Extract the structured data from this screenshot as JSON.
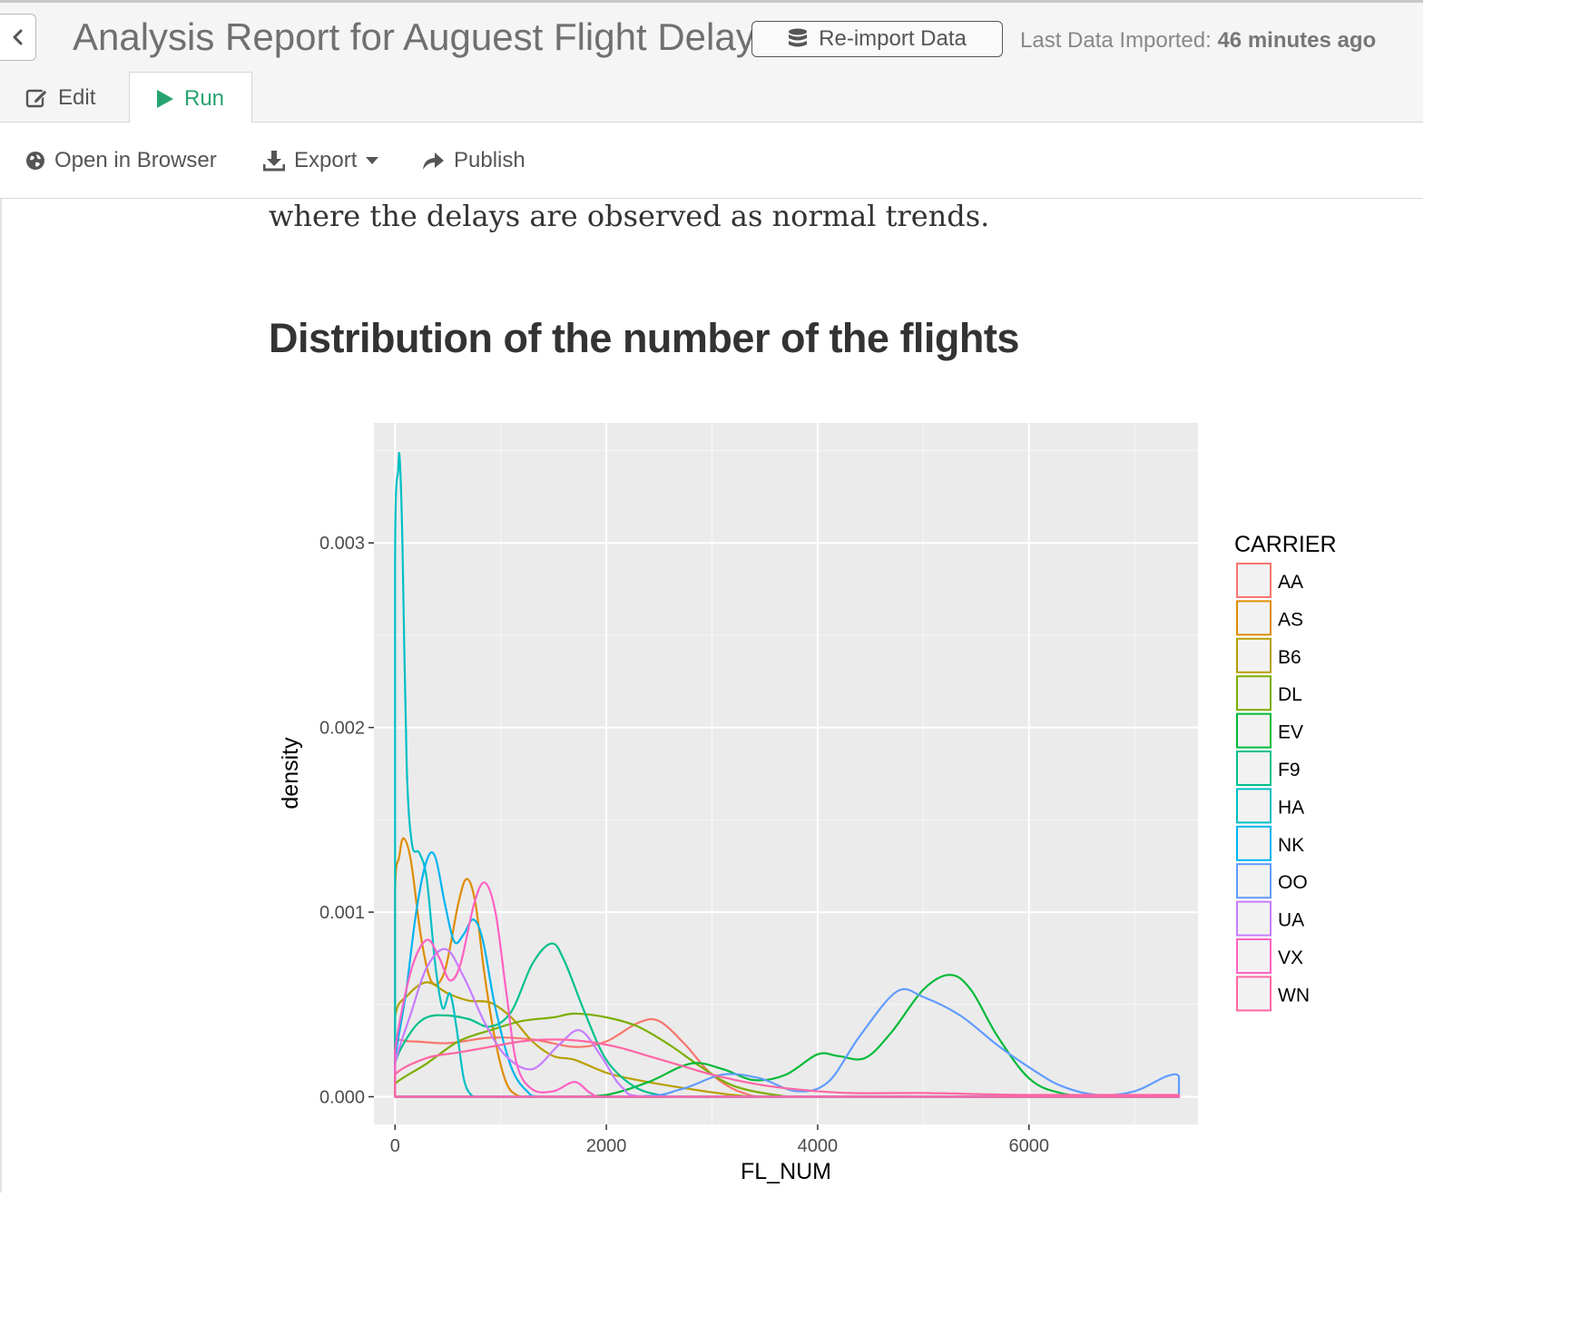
{
  "header": {
    "title": "Analysis Report for Auguest Flight Delay",
    "reimport_label": "Re-import Data",
    "last_import_label": "Last Data Imported:",
    "last_import_value": "46 minutes ago"
  },
  "tabs": [
    {
      "label": "Edit",
      "icon": "pencil-square-icon"
    },
    {
      "label": "Run",
      "icon": "play-icon",
      "active": true
    }
  ],
  "toolbar": {
    "open_label": "Open in Browser",
    "export_label": "Export",
    "publish_label": "Publish"
  },
  "document": {
    "paragraph_tail": "where the delays are observed as normal trends.",
    "heading": "Distribution of the number of the flights"
  },
  "colors": {
    "accent_green": "#27a371",
    "panel_bg": "#ebebeb"
  },
  "chart_data": {
    "type": "line",
    "title": "",
    "xlabel": "FL_NUM",
    "ylabel": "density",
    "xlim": [
      -200,
      7600
    ],
    "ylim": [
      -0.00015,
      0.00365
    ],
    "x_ticks": [
      0,
      2000,
      4000,
      6000
    ],
    "x_tick_labels": [
      "0",
      "2000",
      "4000",
      "6000"
    ],
    "y_ticks": [
      0.0,
      0.001,
      0.002,
      0.003
    ],
    "y_tick_labels": [
      "0.000",
      "0.001",
      "0.002",
      "0.003"
    ],
    "grid": true,
    "legend_title": "CARRIER",
    "legend_position": "right",
    "series": [
      {
        "name": "AA",
        "color": "#F8766D",
        "points": [
          [
            0,
            0
          ],
          [
            0,
            0.00028
          ],
          [
            150,
            0.0003
          ],
          [
            500,
            0.00029
          ],
          [
            900,
            0.00032
          ],
          [
            1300,
            0.00031
          ],
          [
            1700,
            0.00027
          ],
          [
            2000,
            0.0003
          ],
          [
            2300,
            0.0004
          ],
          [
            2500,
            0.00041
          ],
          [
            2750,
            0.00028
          ],
          [
            3000,
            0.00012
          ],
          [
            3300,
            2e-05
          ],
          [
            3700,
            0.0
          ],
          [
            7420,
            0.0
          ]
        ]
      },
      {
        "name": "AS",
        "color": "#DE8C00",
        "points": [
          [
            0,
            0
          ],
          [
            0,
            0.0011
          ],
          [
            40,
            0.0013
          ],
          [
            80,
            0.0014
          ],
          [
            150,
            0.00128
          ],
          [
            250,
            0.00085
          ],
          [
            350,
            0.00062
          ],
          [
            470,
            0.00068
          ],
          [
            600,
            0.00105
          ],
          [
            680,
            0.00118
          ],
          [
            760,
            0.00105
          ],
          [
            850,
            0.00065
          ],
          [
            950,
            0.0003
          ],
          [
            1050,
            8e-05
          ],
          [
            1150,
            1e-05
          ],
          [
            1300,
            0.0
          ],
          [
            7420,
            0.0
          ]
        ]
      },
      {
        "name": "B6",
        "color": "#B79F00",
        "points": [
          [
            0,
            0
          ],
          [
            0,
            0.00043
          ],
          [
            120,
            0.00055
          ],
          [
            300,
            0.00062
          ],
          [
            500,
            0.00056
          ],
          [
            700,
            0.00052
          ],
          [
            900,
            0.00051
          ],
          [
            1100,
            0.00043
          ],
          [
            1300,
            0.0003
          ],
          [
            1500,
            0.00022
          ],
          [
            1700,
            0.0002
          ],
          [
            2000,
            0.00013
          ],
          [
            2300,
            9e-05
          ],
          [
            2700,
            5e-05
          ],
          [
            3200,
            1e-05
          ],
          [
            3600,
            0.0
          ],
          [
            7420,
            0.0
          ]
        ]
      },
      {
        "name": "DL",
        "color": "#7CAE00",
        "points": [
          [
            0,
            0
          ],
          [
            0,
            7e-05
          ],
          [
            300,
            0.00018
          ],
          [
            600,
            0.0003
          ],
          [
            900,
            0.00036
          ],
          [
            1200,
            0.00041
          ],
          [
            1500,
            0.00043
          ],
          [
            1700,
            0.00045
          ],
          [
            2000,
            0.00043
          ],
          [
            2300,
            0.00038
          ],
          [
            2600,
            0.00028
          ],
          [
            2900,
            0.00016
          ],
          [
            3200,
            6e-05
          ],
          [
            3600,
            1e-05
          ],
          [
            4000,
            0.0
          ],
          [
            7420,
            0.0
          ]
        ]
      },
      {
        "name": "EV",
        "color": "#00BA38",
        "points": [
          [
            0,
            0
          ],
          [
            1000,
            0.0
          ],
          [
            1600,
            0.0
          ],
          [
            2000,
            1e-05
          ],
          [
            2400,
            8e-05
          ],
          [
            2800,
            0.00018
          ],
          [
            3100,
            0.00015
          ],
          [
            3400,
            9e-05
          ],
          [
            3700,
            0.00012
          ],
          [
            4000,
            0.00023
          ],
          [
            4200,
            0.00022
          ],
          [
            4450,
            0.00021
          ],
          [
            4700,
            0.00035
          ],
          [
            5000,
            0.00058
          ],
          [
            5250,
            0.00066
          ],
          [
            5450,
            0.00058
          ],
          [
            5700,
            0.00033
          ],
          [
            6000,
            0.0001
          ],
          [
            6300,
            2e-05
          ],
          [
            6700,
            0.0
          ],
          [
            7420,
            0.0
          ]
        ]
      },
      {
        "name": "F9",
        "color": "#00C08B",
        "points": [
          [
            0,
            0
          ],
          [
            0,
            0.00018
          ],
          [
            150,
            0.00035
          ],
          [
            300,
            0.00043
          ],
          [
            500,
            0.00044
          ],
          [
            700,
            0.00042
          ],
          [
            900,
            0.00038
          ],
          [
            1100,
            0.00046
          ],
          [
            1300,
            0.00072
          ],
          [
            1480,
            0.00083
          ],
          [
            1600,
            0.00074
          ],
          [
            1800,
            0.00045
          ],
          [
            2000,
            0.0002
          ],
          [
            2250,
            6e-05
          ],
          [
            2500,
            1e-05
          ],
          [
            2800,
            0.0
          ],
          [
            7420,
            0.0
          ]
        ]
      },
      {
        "name": "HA",
        "color": "#00BFC4",
        "points": [
          [
            0,
            0
          ],
          [
            0,
            0.0029
          ],
          [
            30,
            0.0034
          ],
          [
            45,
            0.00345
          ],
          [
            70,
            0.003
          ],
          [
            110,
            0.0018
          ],
          [
            160,
            0.00137
          ],
          [
            230,
            0.00132
          ],
          [
            300,
            0.00118
          ],
          [
            380,
            0.00072
          ],
          [
            450,
            0.00048
          ],
          [
            520,
            0.00056
          ],
          [
            580,
            0.00038
          ],
          [
            650,
            0.0001
          ],
          [
            720,
            1e-05
          ],
          [
            800,
            0.0
          ],
          [
            7420,
            0.0
          ]
        ]
      },
      {
        "name": "NK",
        "color": "#00B4EF",
        "points": [
          [
            0,
            0
          ],
          [
            0,
            0.0002
          ],
          [
            100,
            0.00055
          ],
          [
            200,
            0.001
          ],
          [
            300,
            0.00128
          ],
          [
            380,
            0.0013
          ],
          [
            470,
            0.00105
          ],
          [
            560,
            0.00084
          ],
          [
            650,
            0.00088
          ],
          [
            740,
            0.00096
          ],
          [
            830,
            0.00085
          ],
          [
            950,
            0.00048
          ],
          [
            1100,
            0.00016
          ],
          [
            1250,
            3e-05
          ],
          [
            1400,
            0.0
          ],
          [
            7420,
            0.0
          ]
        ]
      },
      {
        "name": "OO",
        "color": "#619CFF",
        "points": [
          [
            0,
            0
          ],
          [
            2200,
            0.0
          ],
          [
            2700,
            4e-05
          ],
          [
            3100,
            0.00012
          ],
          [
            3450,
            0.0001
          ],
          [
            3800,
            3e-05
          ],
          [
            4100,
            8e-05
          ],
          [
            4400,
            0.00033
          ],
          [
            4750,
            0.00057
          ],
          [
            5000,
            0.00054
          ],
          [
            5350,
            0.00044
          ],
          [
            5700,
            0.00028
          ],
          [
            6000,
            0.00016
          ],
          [
            6300,
            6e-05
          ],
          [
            6650,
            1e-05
          ],
          [
            7000,
            3e-05
          ],
          [
            7300,
            0.00011
          ],
          [
            7420,
            0.00011
          ],
          [
            7420,
            0.0
          ]
        ]
      },
      {
        "name": "UA",
        "color": "#C77CFF",
        "points": [
          [
            0,
            0
          ],
          [
            0,
            0.00018
          ],
          [
            150,
            0.00045
          ],
          [
            300,
            0.0007
          ],
          [
            480,
            0.0008
          ],
          [
            650,
            0.00065
          ],
          [
            850,
            0.0004
          ],
          [
            1050,
            0.00022
          ],
          [
            1300,
            0.00015
          ],
          [
            1550,
            0.00028
          ],
          [
            1750,
            0.00036
          ],
          [
            1950,
            0.00022
          ],
          [
            2150,
            5e-05
          ],
          [
            2400,
            0.0
          ],
          [
            7420,
            0.0
          ]
        ]
      },
      {
        "name": "VX",
        "color": "#FF61C3",
        "points": [
          [
            0,
            0
          ],
          [
            0,
            0.00025
          ],
          [
            150,
            0.00068
          ],
          [
            300,
            0.00085
          ],
          [
            420,
            0.00075
          ],
          [
            520,
            0.00063
          ],
          [
            620,
            0.00072
          ],
          [
            750,
            0.00105
          ],
          [
            850,
            0.00116
          ],
          [
            950,
            0.001
          ],
          [
            1050,
            0.00058
          ],
          [
            1150,
            0.00018
          ],
          [
            1300,
            4e-05
          ],
          [
            1500,
            3e-05
          ],
          [
            1700,
            8e-05
          ],
          [
            1850,
            2e-05
          ],
          [
            2000,
            0.0
          ],
          [
            7420,
            0.0
          ]
        ]
      },
      {
        "name": "WN",
        "color": "#FF67A4",
        "points": [
          [
            0,
            0
          ],
          [
            0,
            0.00012
          ],
          [
            300,
            0.00021
          ],
          [
            600,
            0.00024
          ],
          [
            900,
            0.00027
          ],
          [
            1200,
            0.0003
          ],
          [
            1500,
            0.00031
          ],
          [
            1800,
            0.0003
          ],
          [
            2100,
            0.00027
          ],
          [
            2400,
            0.00022
          ],
          [
            2700,
            0.00017
          ],
          [
            3000,
            0.00012
          ],
          [
            3400,
            7e-05
          ],
          [
            3800,
            4e-05
          ],
          [
            4300,
            2e-05
          ],
          [
            5000,
            2e-05
          ],
          [
            6000,
            1e-05
          ],
          [
            7420,
            1e-05
          ],
          [
            7420,
            0.0
          ]
        ]
      }
    ]
  }
}
